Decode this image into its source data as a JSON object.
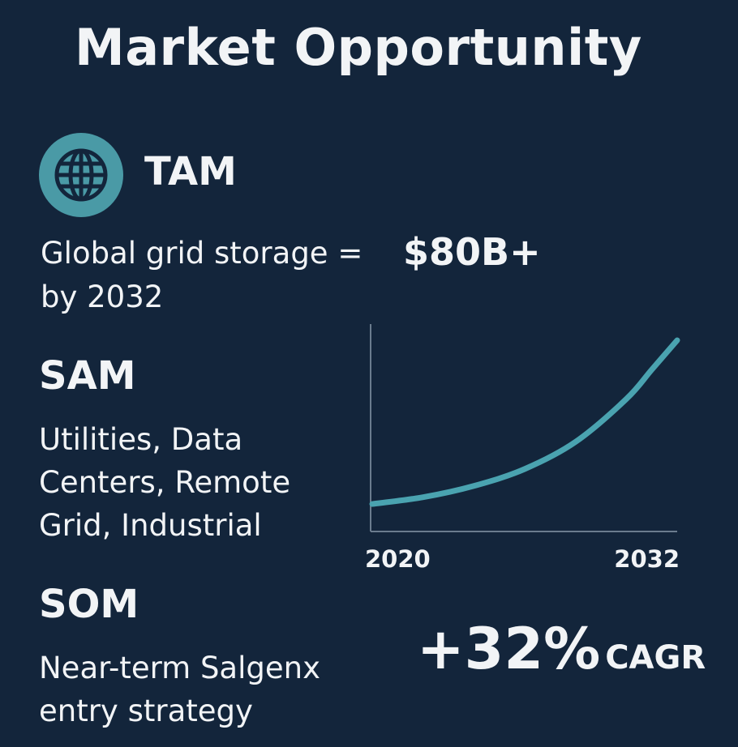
{
  "title": "Market Opportunity",
  "tam": {
    "heading": "TAM",
    "desc_line1": "Global grid storage =",
    "value": "$80B+",
    "desc_line2": "by 2032",
    "icon": "globe-icon"
  },
  "sam": {
    "heading": "SAM",
    "desc_line1": "Utilities, Data",
    "desc_line2": "Centers, Remote",
    "desc_line3": "Grid, Industrial"
  },
  "som": {
    "heading": "SOM",
    "desc_line1": "Near-term Salgenx",
    "desc_line2": "entry strategy"
  },
  "chart_data": {
    "type": "line",
    "x_start_label": "2020",
    "x_end_label": "2032",
    "x": [
      2020,
      2022,
      2024,
      2026,
      2028,
      2030,
      2031,
      2032
    ],
    "values": [
      1.0,
      1.6,
      2.6,
      4.1,
      6.5,
      10.3,
      12.9,
      15.5
    ],
    "title": "",
    "xlabel": "",
    "ylabel": "",
    "grid": false,
    "line_color": "#4aa3b0",
    "axis_color": "#6b7c8e"
  },
  "cagr": {
    "value": "+32%",
    "unit": "CAGR"
  },
  "colors": {
    "background": "#13253b",
    "text": "#f2f4f6",
    "accent": "#4a9aa6"
  }
}
